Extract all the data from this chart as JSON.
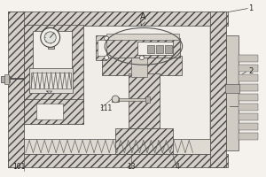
{
  "bg_color": "#f5f2ee",
  "hatch_fc": "#d4cfc8",
  "plain_fc": "#e8e4de",
  "light_fc": "#f0ede8",
  "gray_fc": "#c8c4bc",
  "dark_fc": "#b0aca4",
  "line_color": "#444444",
  "label_1": "1",
  "label_2": "2",
  "label_4": "4",
  "label_13": "13",
  "label_101": "101",
  "label_111": "111",
  "label_A": "A",
  "figsize": [
    3.0,
    2.0
  ],
  "dpi": 100
}
